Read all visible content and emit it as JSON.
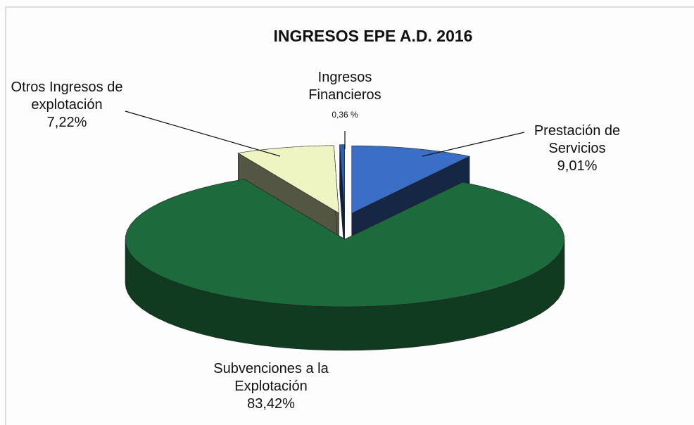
{
  "chart_data": {
    "type": "pie",
    "title": "INGRESOS EPE A.D. 2016",
    "categories": [
      "Prestación de Servicios",
      "Subvenciones a la Explotación",
      "Otros Ingresos de explotación",
      "Ingresos Financieros"
    ],
    "values": [
      9.01,
      83.42,
      7.22,
      0.36
    ],
    "value_labels": [
      "9,01%",
      "83,42%",
      "7,22%",
      "0,36 %"
    ],
    "colors": [
      "#3b6ec6",
      "#1d6b3c",
      "#eff5c2",
      "#2c5fb3"
    ]
  }
}
